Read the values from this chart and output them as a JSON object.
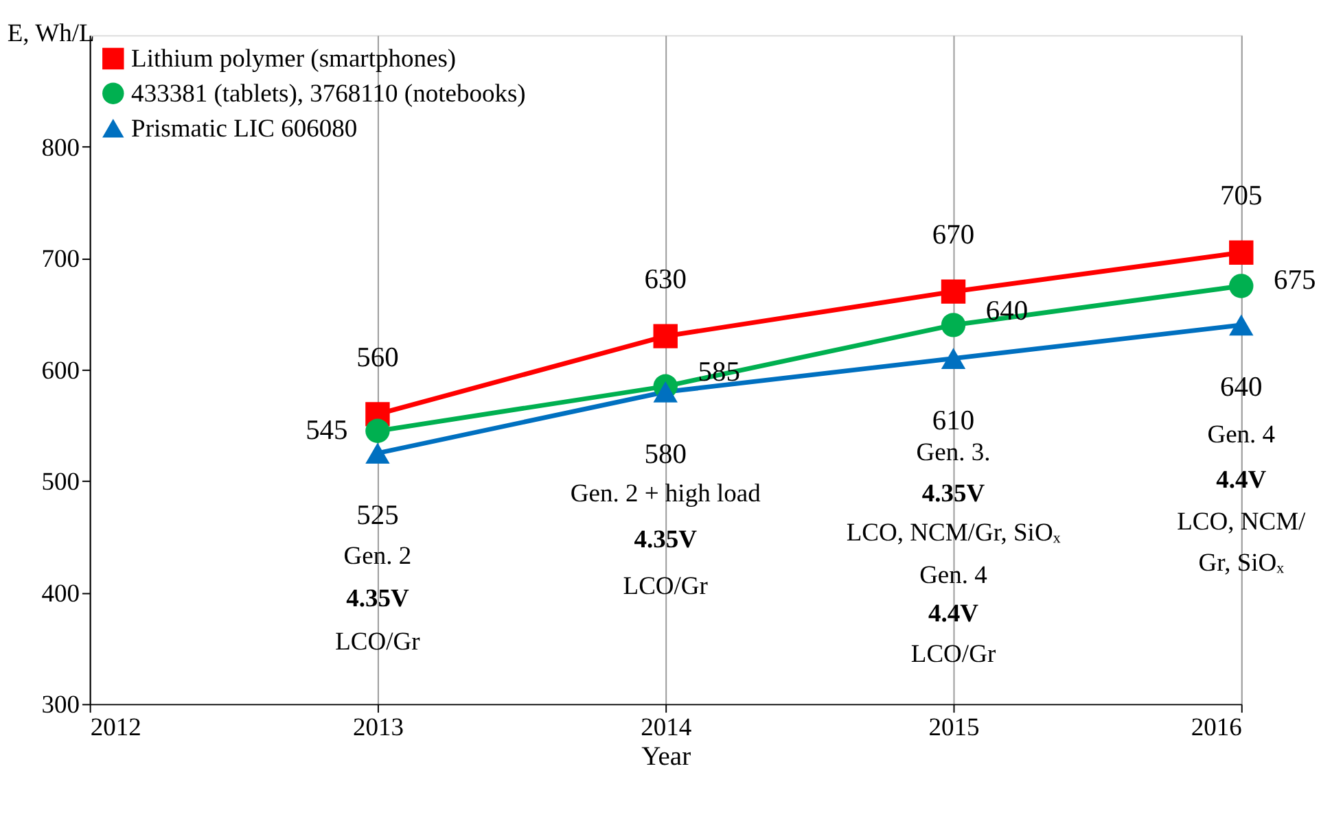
{
  "chart_data": {
    "type": "line",
    "xlabel": "Year",
    "ylabel": "E, Wh/L",
    "x": [
      2013,
      2014,
      2015,
      2016
    ],
    "series": [
      {
        "name": "Lithium polymer (smartphones)",
        "color": "#ff0000",
        "marker": "square",
        "values": [
          560,
          630,
          670,
          705
        ]
      },
      {
        "name": "433381 (tablets), 3768110 (notebooks)",
        "color": "#00b050",
        "marker": "circle",
        "values": [
          545,
          585,
          640,
          675
        ]
      },
      {
        "name": "Prismatic LIC 606080",
        "color": "#0070c0",
        "marker": "triangle",
        "values": [
          525,
          580,
          610,
          640
        ]
      }
    ],
    "xlim": [
      2012,
      2016
    ],
    "xticks": [
      2012,
      2013,
      2014,
      2015,
      2016
    ],
    "ylim": [
      300,
      900
    ],
    "yticks": [
      300,
      400,
      500,
      600,
      700,
      800
    ],
    "grid": "x",
    "legend": "top left",
    "data_labels": true,
    "annotations": [
      "Gen. 2",
      "4.35V",
      "LCO/Gr",
      "Gen. 2 + high load",
      "4.35V",
      "LCO/Gr",
      "Gen. 3.",
      "4.35V",
      "LCO, NCM/Gr, SiOₓ",
      "Gen. 4",
      "4.4V",
      "LCO/Gr",
      "Gen. 4",
      "4.4V",
      "LCO, NCM/",
      "Gr, SiOₓ"
    ]
  }
}
